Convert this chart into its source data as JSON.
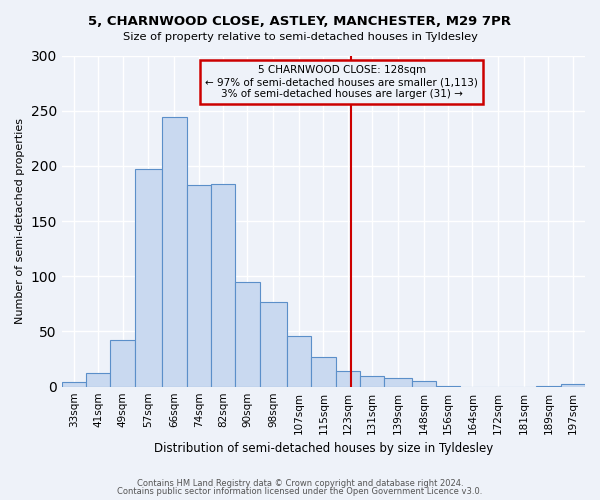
{
  "title1": "5, CHARNWOOD CLOSE, ASTLEY, MANCHESTER, M29 7PR",
  "title2": "Size of property relative to semi-detached houses in Tyldesley",
  "xlabel": "Distribution of semi-detached houses by size in Tyldesley",
  "ylabel": "Number of semi-detached properties",
  "bar_labels": [
    "33sqm",
    "41sqm",
    "49sqm",
    "57sqm",
    "66sqm",
    "74sqm",
    "82sqm",
    "90sqm",
    "98sqm",
    "107sqm",
    "115sqm",
    "123sqm",
    "131sqm",
    "139sqm",
    "148sqm",
    "156sqm",
    "164sqm",
    "172sqm",
    "181sqm",
    "189sqm",
    "197sqm"
  ],
  "bar_values": [
    4,
    12,
    42,
    197,
    244,
    183,
    184,
    95,
    77,
    46,
    27,
    14,
    10,
    8,
    5,
    1,
    0,
    0,
    0,
    1,
    2
  ],
  "bar_color": "#c9d9f0",
  "bar_edge_color": "#5b8fc9",
  "vline_x": 128,
  "vline_color": "#cc0000",
  "annotation_title": "5 CHARNWOOD CLOSE: 128sqm",
  "annotation_line1": "← 97% of semi-detached houses are smaller (1,113)",
  "annotation_line2": "3% of semi-detached houses are larger (31) →",
  "annotation_box_color": "#cc0000",
  "ylim": [
    0,
    300
  ],
  "yticks": [
    0,
    50,
    100,
    150,
    200,
    250,
    300
  ],
  "footnote1": "Contains HM Land Registry data © Crown copyright and database right 2024.",
  "footnote2": "Contains public sector information licensed under the Open Government Licence v3.0.",
  "bg_color": "#eef2f9",
  "bin_edges": [
    33,
    41,
    49,
    57,
    66,
    74,
    82,
    90,
    98,
    107,
    115,
    123,
    131,
    139,
    148,
    156,
    164,
    172,
    181,
    189,
    197,
    205
  ]
}
